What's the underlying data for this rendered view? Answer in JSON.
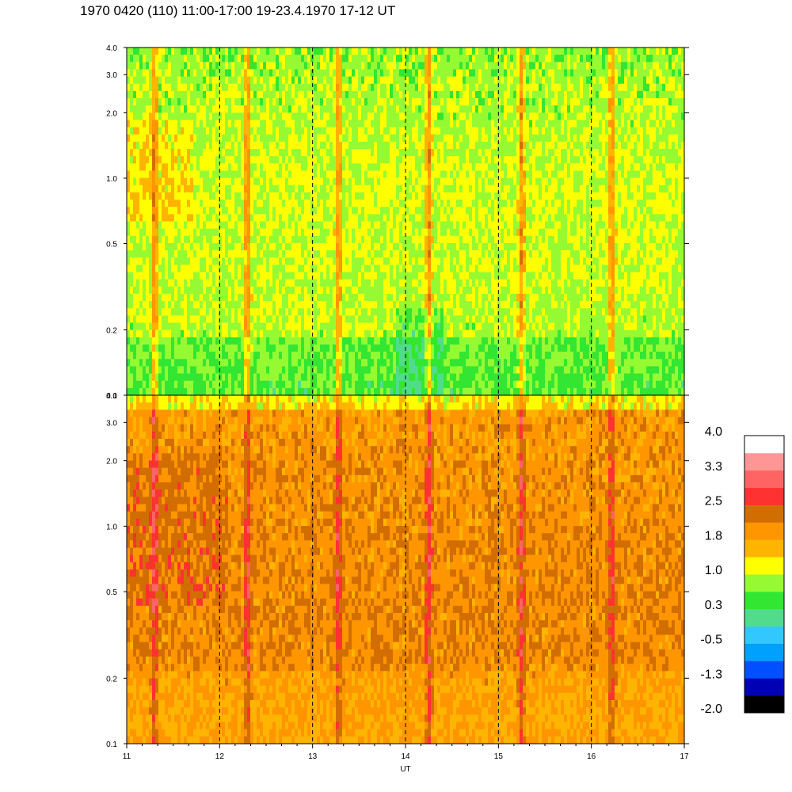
{
  "title": "1970 0420 (110) 11:00-17:00 19-23.4.1970  17-12 UT",
  "chart_data": {
    "type": "heatmap",
    "x": {
      "label": "UT",
      "min": 11,
      "max": 17,
      "ticks": [
        "11",
        "12",
        "13",
        "14",
        "15",
        "16",
        "17"
      ],
      "dashed_hour_lines": [
        12,
        13,
        14,
        15,
        16
      ]
    },
    "panels": [
      {
        "id": "upper",
        "y_scale": "log",
        "ylim": [
          0.1,
          4.0
        ],
        "yticks": [
          "0.1",
          "0.2",
          "0.5",
          "1.0",
          "2.0",
          "3.0",
          "4.0"
        ],
        "dominant_colors": "green / light green with yellow and orange streaks"
      },
      {
        "id": "lower",
        "y_scale": "log",
        "ylim": [
          0.1,
          4.0
        ],
        "yticks": [
          "0.1",
          "0.2",
          "0.5",
          "1.0",
          "2.0",
          "3.0",
          "4.0"
        ],
        "dominant_colors": "orange / yellow with red streaks"
      }
    ],
    "colorbar": {
      "labels": [
        "4.0",
        "3.3",
        "2.5",
        "1.8",
        "1.0",
        "0.3",
        "-0.5",
        "-1.3",
        "-2.0"
      ],
      "range": [
        -2.0,
        4.0
      ],
      "colors": [
        "#000000",
        "#0000b4",
        "#0050ff",
        "#00a0ff",
        "#32c8ff",
        "#50dc8c",
        "#32e632",
        "#96fa32",
        "#ffff00",
        "#ffb400",
        "#ff9600",
        "#d26e00",
        "#ff3232",
        "#ff6464",
        "#ff9696",
        "#ffffff"
      ]
    }
  }
}
